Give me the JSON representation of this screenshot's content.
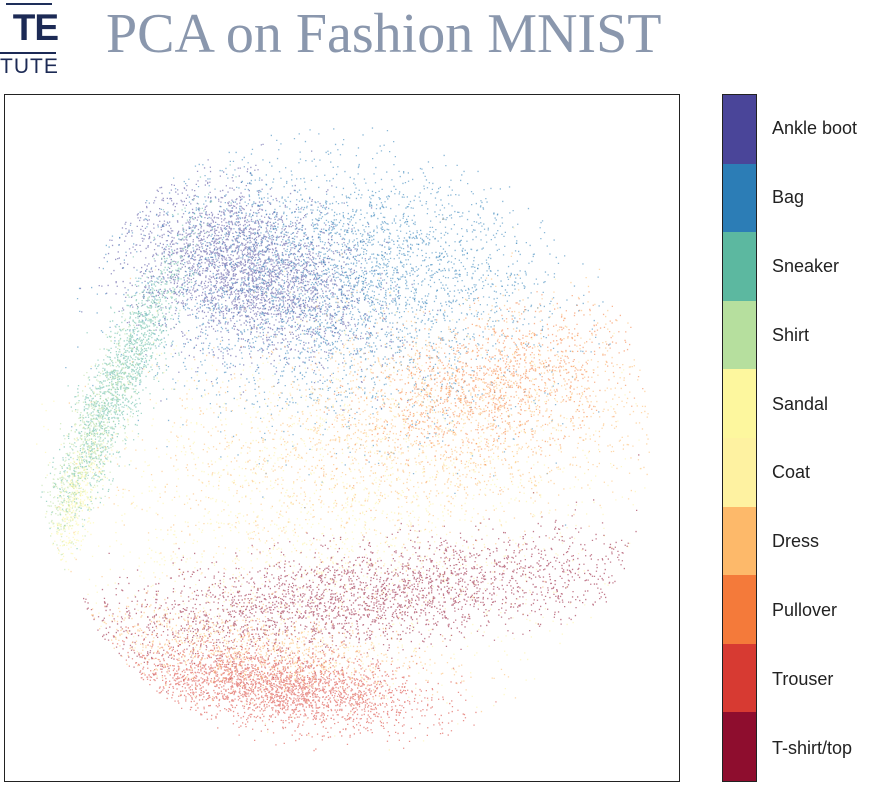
{
  "slide": {
    "title": "PCA on Fashion MNIST",
    "logo_text_line1": "TE",
    "logo_text_line2": "TUTE"
  },
  "chart_data": {
    "type": "scatter",
    "title": "PCA on Fashion MNIST",
    "xlabel": "",
    "ylabel": "",
    "legend": "colorbar-right",
    "grid": false,
    "axis_ticks": false,
    "classes": [
      {
        "name": "Ankle boot",
        "color": "#4a4599"
      },
      {
        "name": "Bag",
        "color": "#2c7db6"
      },
      {
        "name": "Sneaker",
        "color": "#5cb8a0"
      },
      {
        "name": "Shirt",
        "color": "#b6df9e"
      },
      {
        "name": "Sandal",
        "color": "#fdf79e"
      },
      {
        "name": "Coat",
        "color": "#fef2a1"
      },
      {
        "name": "Dress",
        "color": "#fdb96a"
      },
      {
        "name": "Pullover",
        "color": "#f47a3a"
      },
      {
        "name": "Trouser",
        "color": "#d73a32"
      },
      {
        "name": "T-shirt/top",
        "color": "#8e0d2e"
      }
    ],
    "xlim": [
      -1,
      1
    ],
    "ylim": [
      -1,
      1
    ],
    "clusters": [
      {
        "class": "Ankle boot",
        "cx": -0.32,
        "cy": 0.54,
        "sx": 0.2,
        "sy": 0.12,
        "rot": -0.35,
        "n": 3200
      },
      {
        "class": "Bag",
        "cx": -0.05,
        "cy": 0.46,
        "sx": 0.34,
        "sy": 0.2,
        "rot": -0.15,
        "n": 2800
      },
      {
        "class": "Bag",
        "cx": 0.12,
        "cy": 0.62,
        "sx": 0.26,
        "sy": 0.12,
        "rot": -0.2,
        "n": 900
      },
      {
        "class": "Sneaker",
        "cx": -0.72,
        "cy": 0.2,
        "sx": 0.23,
        "sy": 0.045,
        "rot": 1.15,
        "n": 1500
      },
      {
        "class": "Shirt",
        "cx": -0.83,
        "cy": -0.02,
        "sx": 0.2,
        "sy": 0.04,
        "rot": 1.2,
        "n": 700
      },
      {
        "class": "Sandal",
        "cx": -0.87,
        "cy": -0.2,
        "sx": 0.1,
        "sy": 0.03,
        "rot": 1.3,
        "n": 350
      },
      {
        "class": "Coat",
        "cx": -0.05,
        "cy": -0.25,
        "sx": 0.5,
        "sy": 0.28,
        "rot": 0.0,
        "n": 2000
      },
      {
        "class": "Dress",
        "cx": 0.28,
        "cy": 0.04,
        "sx": 0.44,
        "sy": 0.18,
        "rot": 0.18,
        "n": 2200
      },
      {
        "class": "Pullover",
        "cx": 0.48,
        "cy": 0.18,
        "sx": 0.22,
        "sy": 0.1,
        "rot": 0.3,
        "n": 1200
      },
      {
        "class": "T-shirt/top",
        "cx": 0.05,
        "cy": -0.5,
        "sx": 0.5,
        "sy": 0.08,
        "rot": 0.12,
        "n": 3000
      },
      {
        "class": "Trouser",
        "cx": -0.22,
        "cy": -0.78,
        "sx": 0.24,
        "sy": 0.06,
        "rot": -0.12,
        "n": 2600
      },
      {
        "class": "Dress",
        "cx": -0.3,
        "cy": -0.66,
        "sx": 0.32,
        "sy": 0.06,
        "rot": -0.1,
        "n": 900
      }
    ]
  }
}
